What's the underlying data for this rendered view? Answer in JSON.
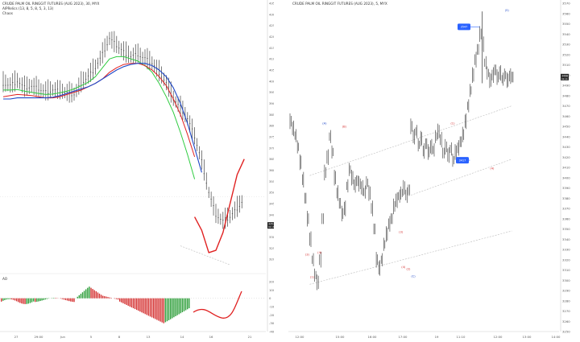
{
  "left_panel": {
    "title": "CRUDE PALM OIL RINGGIT FUTURES (AUG 2023), 30, MYX",
    "indicator_line": "AlPRelics (13, 8, 5, 8, 5, 3, 13)",
    "indicator_name": "Chaos",
    "price_badge": "3352",
    "price_badge_sub": "02:16",
    "ao_label": "AO"
  },
  "right_panel": {
    "title": "CRUDE PALM OIL RINGGIT FUTURES (AUG 2023), 5, MYX",
    "price_badge": "3498",
    "price_badge_sub": "01:14",
    "blue_label_top": "3547",
    "blue_label_mid": "3417"
  },
  "chart_data": [
    {
      "type": "line",
      "title": "CRUDE PALM OIL RINGGIT FUTURES (AUG 2023), 30, MYX",
      "yticks": [
        "4350",
        "4300",
        "4250",
        "4200",
        "4150",
        "4100",
        "4050",
        "4000",
        "3950",
        "3900",
        "3850",
        "3800",
        "3750",
        "3700",
        "3650",
        "3600",
        "3550",
        "3500",
        "3450",
        "3400",
        "3350",
        "3300",
        "3250",
        "3200"
      ],
      "xticks": [
        "27",
        "29:00",
        "Jun",
        "5",
        "8",
        "13",
        "14",
        "16",
        "21"
      ],
      "ylim": [
        3150,
        4350
      ],
      "series": [
        {
          "x": [
            0,
            4,
            8,
            12,
            16,
            20,
            24,
            28,
            32,
            36,
            40,
            44,
            48,
            52,
            56,
            60,
            64,
            68,
            72,
            76,
            80,
            84,
            88,
            92,
            96,
            100,
            104,
            108,
            112,
            116,
            120,
            124,
            128,
            132,
            136
          ],
          "values": [
            3990,
            3980,
            4000,
            3970,
            3975,
            3965,
            3950,
            3960,
            3955,
            3945,
            3940,
            3990,
            4020,
            4060,
            4120,
            4190,
            4160,
            4130,
            4110,
            4120,
            4100,
            4080,
            4040,
            3990,
            3920,
            3880,
            3830,
            3750,
            3640,
            3500,
            3400,
            3370,
            3390,
            3430,
            3470
          ]
        },
        {
          "x": [
            0,
            4,
            8,
            12,
            16,
            20,
            24,
            28,
            32,
            36,
            40,
            44,
            48,
            52,
            56,
            60,
            64,
            68,
            72,
            76,
            80,
            84,
            88,
            92,
            96,
            100,
            104,
            108
          ],
          "values": [
            3960,
            3960,
            3962,
            3955,
            3950,
            3945,
            3940,
            3942,
            3948,
            3955,
            3965,
            3980,
            3995,
            4020,
            4060,
            4100,
            4110,
            4110,
            4100,
            4090,
            4070,
            4040,
            3990,
            3930,
            3860,
            3770,
            3670,
            3560
          ]
        },
        {
          "x": [
            0,
            4,
            8,
            12,
            16,
            20,
            24,
            28,
            32,
            36,
            40,
            44,
            48,
            52,
            56,
            60,
            64,
            68,
            72,
            76,
            80,
            84,
            88,
            92,
            96,
            100,
            104,
            108
          ],
          "values": [
            3930,
            3935,
            3940,
            3938,
            3935,
            3930,
            3925,
            3925,
            3930,
            3940,
            3950,
            3960,
            3975,
            3990,
            4010,
            4040,
            4060,
            4075,
            4080,
            4080,
            4070,
            4050,
            4020,
            3980,
            3920,
            3850,
            3760,
            3660
          ]
        },
        {
          "x": [
            0,
            4,
            8,
            12,
            16,
            20,
            24,
            28,
            32,
            36,
            40,
            44,
            48,
            52,
            56,
            60,
            64,
            68,
            72,
            76,
            80,
            84,
            88,
            92,
            96,
            100,
            104,
            108,
            112
          ],
          "values": [
            3920,
            3920,
            3925,
            3925,
            3925,
            3925,
            3925,
            3928,
            3935,
            3945,
            3955,
            3965,
            3975,
            3990,
            4010,
            4030,
            4050,
            4065,
            4075,
            4080,
            4080,
            4070,
            4050,
            4020,
            3970,
            3900,
            3810,
            3700,
            3590
          ]
        },
        {
          "x": [
            108,
            112,
            116,
            120,
            124,
            128,
            132,
            136
          ],
          "values": [
            3390,
            3330,
            3230,
            3240,
            3320,
            3450,
            3580,
            3650
          ]
        }
      ],
      "ao": {
        "ylim": [
          -400,
          200
        ],
        "yticks": [
          "200",
          "100",
          "0",
          "-100",
          "-200",
          "-300",
          "-400"
        ]
      }
    },
    {
      "type": "line",
      "title": "CRUDE PALM OIL RINGGIT FUTURES (AUG 2023), 5, MYX",
      "yticks": [
        "3570",
        "3560",
        "3550",
        "3540",
        "3530",
        "3520",
        "3510",
        "3500",
        "3490",
        "3480",
        "3470",
        "3460",
        "3450",
        "3440",
        "3430",
        "3420",
        "3410",
        "3400",
        "3390",
        "3380",
        "3370",
        "3360",
        "3350",
        "3340",
        "3330",
        "3320",
        "3310",
        "3300",
        "3290",
        "3280",
        "3270",
        "3260",
        "3250"
      ],
      "xticks": [
        "12:00",
        "15:00",
        "16:00",
        "17:00",
        "19",
        "11:10",
        "12:00",
        "13:00",
        "14:00"
      ],
      "ylim": [
        3250,
        3570
      ],
      "x": [
        0,
        2,
        4,
        6,
        8,
        10,
        12,
        14,
        16,
        18,
        20,
        22,
        24,
        26,
        28,
        30,
        32,
        34,
        36,
        38,
        40,
        42,
        44,
        46,
        48,
        50,
        52,
        54,
        56,
        58,
        60,
        62,
        64,
        66,
        68,
        70,
        72,
        74,
        76,
        78,
        80,
        82,
        84,
        86,
        88,
        90,
        92,
        94,
        96,
        98,
        100,
        102,
        104,
        106,
        108,
        110,
        112,
        114,
        116,
        118,
        120,
        122,
        124,
        126,
        128,
        130,
        132,
        134,
        136,
        138,
        140,
        142,
        144,
        146,
        148,
        150,
        152,
        154,
        156,
        158,
        160,
        162,
        164,
        166,
        168,
        170,
        172,
        174,
        176,
        178,
        180
      ],
      "values": [
        3455,
        3448,
        3441,
        3430,
        3415,
        3398,
        3380,
        3360,
        3340,
        3320,
        3305,
        3298,
        3320,
        3360,
        3405,
        3420,
        3440,
        3425,
        3400,
        3385,
        3375,
        3365,
        3370,
        3392,
        3408,
        3400,
        3393,
        3397,
        3394,
        3390,
        3386,
        3395,
        3385,
        3370,
        3350,
        3320,
        3312,
        3320,
        3335,
        3345,
        3355,
        3360,
        3372,
        3378,
        3382,
        3385,
        3390,
        3383,
        3388,
        3450,
        3440,
        3445,
        3432,
        3438,
        3426,
        3433,
        3425,
        3430,
        3427,
        3440,
        3445,
        3437,
        3424,
        3430,
        3422,
        3428,
        3417,
        3425,
        3429,
        3435,
        3442,
        3455,
        3470,
        3485,
        3500,
        3515,
        3525,
        3540,
        3530,
        3512,
        3502,
        3495,
        3500,
        3505,
        3498,
        3502,
        3496,
        3500,
        3495,
        3499,
        3498
      ],
      "wave_labels": [
        "(A)",
        "(B)",
        "(1)",
        "(2)",
        "(3)",
        "(4)",
        "(5)",
        "(5)",
        "(4)",
        "(3)",
        "(2)",
        "(1)"
      ]
    }
  ]
}
